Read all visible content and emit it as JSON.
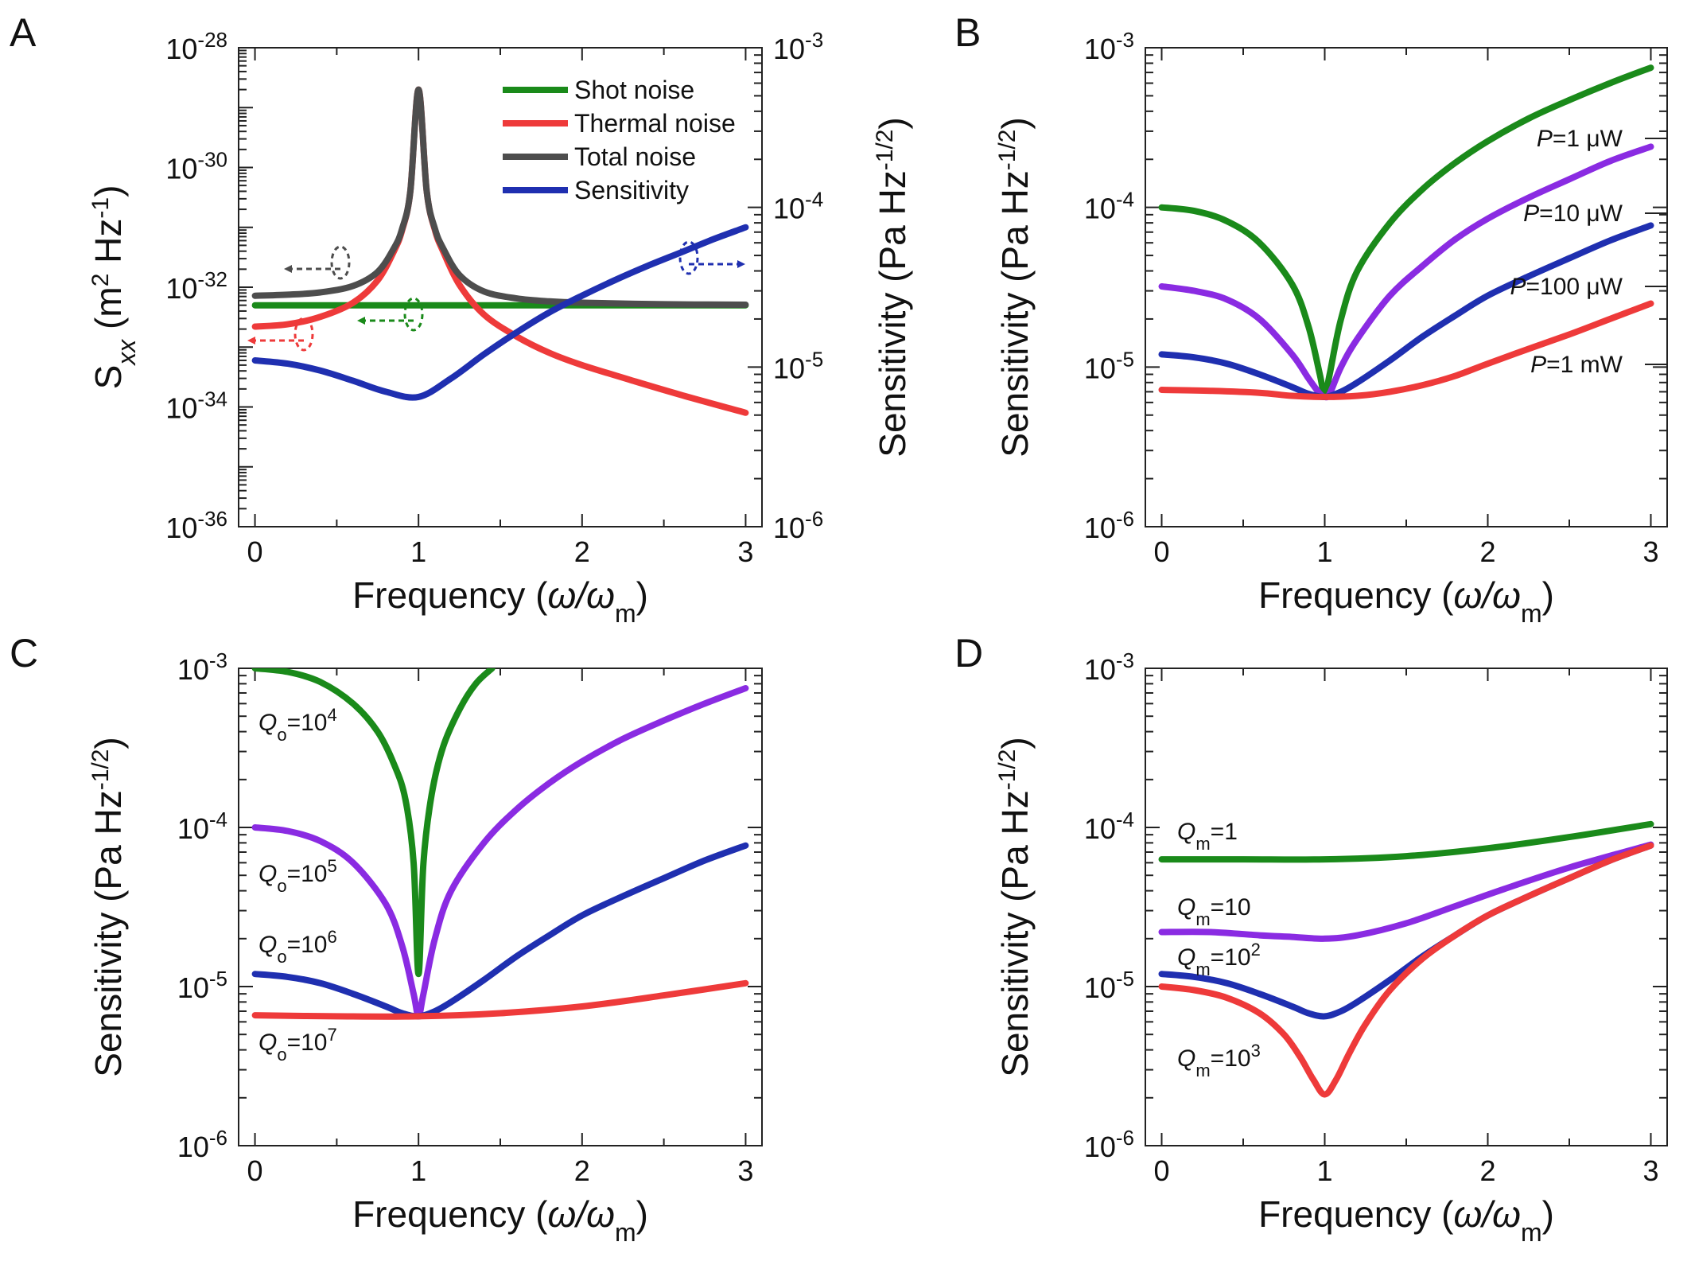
{
  "chart_data": [
    {
      "panel": "A",
      "type": "line",
      "xlabel": "Frequency (ω/ωm)",
      "ylabel_left": "Sxx (m2 Hz-1)",
      "ylabel_right": "Sensitivity (Pa Hz-1/2)",
      "xlim": [
        -0.1,
        3.1
      ],
      "xticks": [
        0,
        1,
        2,
        3
      ],
      "ylim_left": [
        1e-36,
        1e-28
      ],
      "yticks_left": [
        "10-28",
        "10-30",
        "10-32",
        "10-34",
        "10-36"
      ],
      "ylim_right": [
        1e-06,
        0.001
      ],
      "yticks_right": [
        "10-3",
        "10-4",
        "10-5",
        "10-6"
      ],
      "legend": [
        "Shot noise",
        "Thermal noise",
        "Total noise",
        "Sensitivity"
      ],
      "series": [
        {
          "name": "Shot noise",
          "axis": "left",
          "color": "#1a8a1a",
          "x": [
            0,
            0.5,
            1,
            1.5,
            2,
            2.5,
            3
          ],
          "y": [
            5e-33,
            5e-33,
            5e-33,
            5e-33,
            5e-33,
            5e-33,
            5e-33
          ]
        },
        {
          "name": "Thermal noise",
          "axis": "left",
          "color": "#ee3a3a",
          "x": [
            0,
            0.2,
            0.4,
            0.6,
            0.75,
            0.85,
            0.9,
            0.95,
            1.0,
            1.05,
            1.1,
            1.15,
            1.25,
            1.4,
            1.6,
            1.8,
            2.0,
            2.3,
            2.6,
            3.0
          ],
          "y": [
            2.2e-33,
            2.4e-33,
            3.2e-33,
            5.5e-33,
            1.3e-32,
            4e-32,
            9e-32,
            4e-31,
            2e-29,
            4e-31,
            9e-32,
            4e-32,
            1.1e-32,
            3.5e-33,
            1.5e-33,
            8e-34,
            5e-34,
            2.8e-34,
            1.6e-34,
            8e-35
          ]
        },
        {
          "name": "Total noise",
          "axis": "left",
          "color": "#4d4d4d",
          "x": [
            0,
            0.2,
            0.4,
            0.6,
            0.75,
            0.85,
            0.9,
            0.95,
            1.0,
            1.05,
            1.1,
            1.15,
            1.25,
            1.4,
            1.6,
            1.8,
            2.0,
            2.5,
            3.0
          ],
          "y": [
            7.2e-33,
            7.5e-33,
            8.2e-33,
            1.05e-32,
            1.8e-32,
            4.5e-32,
            9.5e-32,
            4e-31,
            2e-29,
            4e-31,
            9.5e-32,
            4.5e-32,
            1.6e-32,
            8.5e-33,
            6.5e-33,
            5.8e-33,
            5.5e-33,
            5.2e-33,
            5.1e-33
          ]
        },
        {
          "name": "Sensitivity",
          "axis": "right",
          "color": "#1f2fb0",
          "x": [
            0,
            0.2,
            0.4,
            0.6,
            0.8,
            1.0,
            1.2,
            1.4,
            1.6,
            1.8,
            2.0,
            2.2,
            2.4,
            2.6,
            2.8,
            3.0
          ],
          "y": [
            1.1e-05,
            1.05e-05,
            9.5e-06,
            8.2e-06,
            7e-06,
            6.5e-06,
            8.5e-06,
            1.2e-05,
            1.65e-05,
            2.2e-05,
            2.8e-05,
            3.5e-05,
            4.3e-05,
            5.2e-05,
            6.3e-05,
            7.5e-05
          ]
        }
      ]
    },
    {
      "panel": "B",
      "type": "line",
      "xlabel": "Frequency (ω/ωm)",
      "ylabel": "Sensitivity (Pa Hz-1/2)",
      "xlim": [
        -0.1,
        3.1
      ],
      "xticks": [
        0,
        1,
        2,
        3
      ],
      "ylim": [
        1e-06,
        0.001
      ],
      "yticks": [
        "10-3",
        "10-4",
        "10-5",
        "10-6"
      ],
      "series": [
        {
          "name": "P=1 μW",
          "color": "#1a8a1a",
          "x": [
            0,
            0.2,
            0.4,
            0.6,
            0.8,
            0.9,
            0.97,
            1.0,
            1.03,
            1.1,
            1.2,
            1.4,
            1.6,
            1.8,
            2.0,
            2.25,
            2.5,
            2.75,
            3.0
          ],
          "y": [
            0.0001,
            9.5e-05,
            8.2e-05,
            6e-05,
            3.3e-05,
            1.8e-05,
            9e-06,
            6.5e-06,
            9e-06,
            2e-05,
            4e-05,
            8e-05,
            0.00013,
            0.00019,
            0.00026,
            0.00036,
            0.00047,
            0.0006,
            0.00075
          ]
        },
        {
          "name": "P=10 μW",
          "color": "#8a2be2",
          "x": [
            0,
            0.2,
            0.4,
            0.6,
            0.8,
            0.9,
            0.97,
            1.0,
            1.03,
            1.1,
            1.2,
            1.4,
            1.6,
            1.8,
            2.0,
            2.25,
            2.5,
            2.75,
            3.0
          ],
          "y": [
            3.2e-05,
            3e-05,
            2.65e-05,
            2e-05,
            1.2e-05,
            8.5e-06,
            6.8e-06,
            6.5e-06,
            6.8e-06,
            1e-05,
            1.5e-05,
            2.8e-05,
            4.3e-05,
            6.3e-05,
            8.5e-05,
            0.000115,
            0.00015,
            0.000195,
            0.00024
          ]
        },
        {
          "name": "P=100 μW",
          "color": "#1f2fb0",
          "x": [
            0,
            0.2,
            0.4,
            0.6,
            0.8,
            0.9,
            1.0,
            1.1,
            1.2,
            1.4,
            1.6,
            1.8,
            2.0,
            2.25,
            2.5,
            2.75,
            3.0
          ],
          "y": [
            1.2e-05,
            1.15e-05,
            1.05e-05,
            9e-06,
            7.5e-06,
            6.8e-06,
            6.5e-06,
            7e-06,
            8e-06,
            1.1e-05,
            1.55e-05,
            2.1e-05,
            2.8e-05,
            3.7e-05,
            4.8e-05,
            6.2e-05,
            7.7e-05
          ]
        },
        {
          "name": "P=1 mW",
          "color": "#ee3a3a",
          "x": [
            0,
            0.3,
            0.6,
            0.8,
            1.0,
            1.2,
            1.4,
            1.6,
            1.8,
            2.0,
            2.25,
            2.5,
            2.75,
            3.0
          ],
          "y": [
            7.2e-06,
            7.1e-06,
            6.9e-06,
            6.6e-06,
            6.5e-06,
            6.6e-06,
            7e-06,
            7.7e-06,
            8.8e-06,
            1.05e-05,
            1.3e-05,
            1.6e-05,
            2e-05,
            2.5e-05
          ]
        }
      ],
      "annotations": [
        {
          "pre": "P",
          "text": "=1 μW"
        },
        {
          "pre": "P",
          "text": "=10 μW"
        },
        {
          "pre": "P",
          "text": "=100 μW"
        },
        {
          "pre": "P",
          "text": "=1 mW"
        }
      ]
    },
    {
      "panel": "C",
      "type": "line",
      "xlabel": "Frequency (ω/ωm)",
      "ylabel": "Sensitivity (Pa Hz-1/2)",
      "xlim": [
        -0.1,
        3.1
      ],
      "xticks": [
        0,
        1,
        2,
        3
      ],
      "ylim": [
        1e-06,
        0.001
      ],
      "yticks": [
        "10-3",
        "10-4",
        "10-5",
        "10-6"
      ],
      "series": [
        {
          "name": "Qo=10^4",
          "color": "#1a8a1a",
          "x": [
            0,
            0.2,
            0.4,
            0.6,
            0.75,
            0.85,
            0.92,
            0.97,
            1.0,
            1.03,
            1.08,
            1.15,
            1.25,
            1.35,
            1.45
          ],
          "y": [
            0.001,
            0.00095,
            0.00082,
            0.0006,
            0.0004,
            0.00025,
            0.00015,
            6e-05,
            1.2e-05,
            6e-05,
            0.00016,
            0.00032,
            0.00055,
            0.0008,
            0.001
          ]
        },
        {
          "name": "Qo=10^5",
          "color": "#8a2be2",
          "x": [
            0,
            0.2,
            0.4,
            0.6,
            0.8,
            0.9,
            0.97,
            1.0,
            1.03,
            1.1,
            1.2,
            1.4,
            1.6,
            1.8,
            2.0,
            2.25,
            2.5,
            2.75,
            3.0
          ],
          "y": [
            0.0001,
            9.5e-05,
            8.2e-05,
            6e-05,
            3.3e-05,
            1.8e-05,
            9e-06,
            6.5e-06,
            9e-06,
            2e-05,
            4e-05,
            8e-05,
            0.00013,
            0.00019,
            0.00026,
            0.00036,
            0.00047,
            0.0006,
            0.00075
          ]
        },
        {
          "name": "Qo=10^6",
          "color": "#1f2fb0",
          "x": [
            0,
            0.2,
            0.4,
            0.6,
            0.8,
            0.9,
            1.0,
            1.1,
            1.2,
            1.4,
            1.6,
            1.8,
            2.0,
            2.25,
            2.5,
            2.75,
            3.0
          ],
          "y": [
            1.2e-05,
            1.15e-05,
            1.05e-05,
            9e-06,
            7.5e-06,
            6.8e-06,
            6.5e-06,
            7e-06,
            8e-06,
            1.1e-05,
            1.55e-05,
            2.1e-05,
            2.8e-05,
            3.7e-05,
            4.8e-05,
            6.2e-05,
            7.7e-05
          ]
        },
        {
          "name": "Qo=10^7",
          "color": "#ee3a3a",
          "x": [
            0,
            0.5,
            1.0,
            1.5,
            2.0,
            2.5,
            3.0
          ],
          "y": [
            6.6e-06,
            6.5e-06,
            6.5e-06,
            6.8e-06,
            7.5e-06,
            8.8e-06,
            1.05e-05
          ]
        }
      ],
      "annotations": [
        {
          "pre": "Q",
          "sub": "o",
          "text": "=10",
          "sup": "4"
        },
        {
          "pre": "Q",
          "sub": "o",
          "text": "=10",
          "sup": "5"
        },
        {
          "pre": "Q",
          "sub": "o",
          "text": "=10",
          "sup": "6"
        },
        {
          "pre": "Q",
          "sub": "o",
          "text": "=10",
          "sup": "7"
        }
      ]
    },
    {
      "panel": "D",
      "type": "line",
      "xlabel": "Frequency (ω/ωm)",
      "ylabel": "Sensitivity (Pa Hz-1/2)",
      "xlim": [
        -0.1,
        3.1
      ],
      "xticks": [
        0,
        1,
        2,
        3
      ],
      "ylim": [
        1e-06,
        0.001
      ],
      "yticks": [
        "10-3",
        "10-4",
        "10-5",
        "10-6"
      ],
      "series": [
        {
          "name": "Qm=1",
          "color": "#1a8a1a",
          "x": [
            0,
            0.5,
            1.0,
            1.5,
            2.0,
            2.5,
            3.0
          ],
          "y": [
            6.3e-05,
            6.3e-05,
            6.3e-05,
            6.6e-05,
            7.4e-05,
            8.7e-05,
            0.000105
          ]
        },
        {
          "name": "Qm=10",
          "color": "#8a2be2",
          "x": [
            0,
            0.3,
            0.6,
            0.8,
            1.0,
            1.2,
            1.5,
            1.8,
            2.1,
            2.5,
            3.0
          ],
          "y": [
            2.2e-05,
            2.2e-05,
            2.1e-05,
            2.05e-05,
            2e-05,
            2.1e-05,
            2.5e-05,
            3.2e-05,
            4.1e-05,
            5.6e-05,
            7.8e-05
          ]
        },
        {
          "name": "Qm=10^2",
          "color": "#1f2fb0",
          "x": [
            0,
            0.2,
            0.4,
            0.6,
            0.8,
            0.9,
            1.0,
            1.1,
            1.2,
            1.4,
            1.6,
            1.8,
            2.0,
            2.25,
            2.5,
            2.75,
            3.0
          ],
          "y": [
            1.2e-05,
            1.15e-05,
            1.05e-05,
            9e-06,
            7.5e-06,
            6.8e-06,
            6.5e-06,
            7e-06,
            8e-06,
            1.1e-05,
            1.55e-05,
            2.1e-05,
            2.8e-05,
            3.7e-05,
            4.8e-05,
            6.2e-05,
            7.7e-05
          ]
        },
        {
          "name": "Qm=10^3",
          "color": "#ee3a3a",
          "x": [
            0,
            0.2,
            0.4,
            0.6,
            0.75,
            0.85,
            0.93,
            1.0,
            1.07,
            1.15,
            1.25,
            1.4,
            1.6,
            1.8,
            2.0,
            2.25,
            2.5,
            2.75,
            3.0
          ],
          "y": [
            1e-05,
            9.5e-06,
            8.5e-06,
            6.8e-06,
            5e-06,
            3.6e-06,
            2.6e-06,
            2.1e-06,
            2.6e-06,
            3.8e-06,
            5.8e-06,
            9.5e-06,
            1.5e-05,
            2.1e-05,
            2.8e-05,
            3.7e-05,
            4.8e-05,
            6.2e-05,
            7.7e-05
          ]
        }
      ],
      "annotations": [
        {
          "pre": "Q",
          "sub": "m",
          "text": "=1",
          "sup": ""
        },
        {
          "pre": "Q",
          "sub": "m",
          "text": "=10",
          "sup": ""
        },
        {
          "pre": "Q",
          "sub": "m",
          "text": "=10",
          "sup": "2"
        },
        {
          "pre": "Q",
          "sub": "m",
          "text": "=10",
          "sup": "3"
        }
      ]
    }
  ]
}
